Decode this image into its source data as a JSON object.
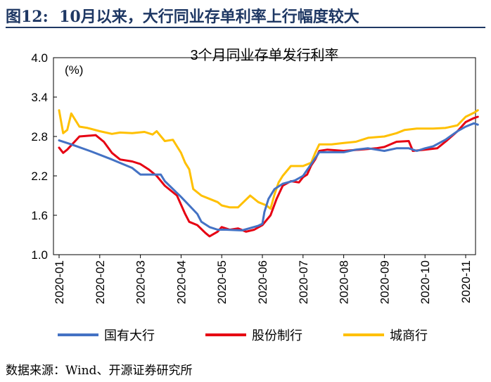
{
  "figure": {
    "label": "图12:",
    "caption": "10月以来，大行同业存单利率上行幅度较大",
    "source": "数据来源：Wind、开源证券研究所"
  },
  "chart_data": {
    "type": "line",
    "title": "3个月同业存单发行利率",
    "ylabel": "(%)",
    "xlabel": "",
    "ylim": [
      1.0,
      4.0
    ],
    "yticks": [
      "4.0",
      "3.4",
      "2.8",
      "2.2",
      "1.6",
      "1.0"
    ],
    "xticks": [
      "2020-01",
      "2020-02",
      "2020-03",
      "2020-04",
      "2020-05",
      "2020-06",
      "2020-07",
      "2020-08",
      "2020-09",
      "2020-10",
      "2020-11"
    ],
    "legend_position": "bottom",
    "series": [
      {
        "name": "国有大行",
        "color": "#4472c4",
        "points": [
          [
            0,
            2.74
          ],
          [
            0.3,
            2.68
          ],
          [
            0.8,
            2.57
          ],
          [
            1.3,
            2.45
          ],
          [
            1.8,
            2.32
          ],
          [
            2.0,
            2.22
          ],
          [
            2.5,
            2.22
          ],
          [
            2.6,
            2.12
          ],
          [
            3.0,
            1.88
          ],
          [
            3.2,
            1.75
          ],
          [
            3.4,
            1.62
          ],
          [
            3.5,
            1.5
          ],
          [
            3.7,
            1.42
          ],
          [
            3.9,
            1.38
          ],
          [
            4.1,
            1.38
          ],
          [
            4.5,
            1.37
          ],
          [
            4.9,
            1.44
          ],
          [
            5.0,
            1.47
          ],
          [
            5.05,
            1.65
          ],
          [
            5.15,
            1.85
          ],
          [
            5.3,
            2.0
          ],
          [
            5.5,
            2.08
          ],
          [
            5.8,
            2.13
          ],
          [
            6.0,
            2.2
          ],
          [
            6.2,
            2.38
          ],
          [
            6.4,
            2.56
          ],
          [
            6.6,
            2.56
          ],
          [
            7.0,
            2.56
          ],
          [
            7.3,
            2.6
          ],
          [
            7.6,
            2.62
          ],
          [
            8.0,
            2.58
          ],
          [
            8.3,
            2.62
          ],
          [
            8.6,
            2.62
          ],
          [
            8.8,
            2.58
          ],
          [
            9.0,
            2.62
          ],
          [
            9.2,
            2.65
          ],
          [
            9.5,
            2.75
          ],
          [
            9.8,
            2.88
          ],
          [
            10.0,
            2.95
          ],
          [
            10.2,
            3.0
          ],
          [
            10.3,
            2.98
          ]
        ]
      },
      {
        "name": "股份制行",
        "color": "#e60012",
        "points": [
          [
            0,
            2.63
          ],
          [
            0.1,
            2.55
          ],
          [
            0.2,
            2.6
          ],
          [
            0.5,
            2.8
          ],
          [
            0.9,
            2.82
          ],
          [
            1.1,
            2.72
          ],
          [
            1.3,
            2.55
          ],
          [
            1.5,
            2.45
          ],
          [
            1.8,
            2.42
          ],
          [
            2.0,
            2.38
          ],
          [
            2.2,
            2.3
          ],
          [
            2.4,
            2.2
          ],
          [
            2.6,
            2.05
          ],
          [
            2.9,
            1.9
          ],
          [
            3.1,
            1.62
          ],
          [
            3.2,
            1.5
          ],
          [
            3.4,
            1.45
          ],
          [
            3.6,
            1.33
          ],
          [
            3.7,
            1.28
          ],
          [
            3.9,
            1.35
          ],
          [
            4.0,
            1.42
          ],
          [
            4.2,
            1.38
          ],
          [
            4.4,
            1.4
          ],
          [
            4.6,
            1.35
          ],
          [
            4.8,
            1.38
          ],
          [
            5.0,
            1.45
          ],
          [
            5.2,
            1.6
          ],
          [
            5.35,
            1.85
          ],
          [
            5.5,
            2.05
          ],
          [
            5.7,
            2.12
          ],
          [
            5.9,
            2.1
          ],
          [
            6.0,
            2.18
          ],
          [
            6.1,
            2.22
          ],
          [
            6.2,
            2.36
          ],
          [
            6.3,
            2.45
          ],
          [
            6.4,
            2.58
          ],
          [
            6.6,
            2.6
          ],
          [
            7.0,
            2.58
          ],
          [
            7.4,
            2.6
          ],
          [
            7.8,
            2.62
          ],
          [
            8.0,
            2.64
          ],
          [
            8.3,
            2.72
          ],
          [
            8.6,
            2.73
          ],
          [
            8.7,
            2.58
          ],
          [
            9.0,
            2.6
          ],
          [
            9.3,
            2.62
          ],
          [
            9.5,
            2.72
          ],
          [
            9.8,
            2.88
          ],
          [
            10.0,
            3.02
          ],
          [
            10.2,
            3.08
          ],
          [
            10.3,
            3.1
          ]
        ]
      },
      {
        "name": "城商行",
        "color": "#ffc000",
        "points": [
          [
            0,
            3.2
          ],
          [
            0.1,
            2.85
          ],
          [
            0.2,
            2.9
          ],
          [
            0.3,
            3.15
          ],
          [
            0.5,
            2.95
          ],
          [
            0.7,
            2.93
          ],
          [
            1.0,
            2.88
          ],
          [
            1.3,
            2.84
          ],
          [
            1.5,
            2.86
          ],
          [
            1.8,
            2.85
          ],
          [
            2.1,
            2.87
          ],
          [
            2.3,
            2.83
          ],
          [
            2.4,
            2.88
          ],
          [
            2.6,
            2.73
          ],
          [
            2.8,
            2.75
          ],
          [
            2.9,
            2.65
          ],
          [
            3.0,
            2.55
          ],
          [
            3.1,
            2.4
          ],
          [
            3.2,
            2.3
          ],
          [
            3.3,
            2.0
          ],
          [
            3.5,
            1.9
          ],
          [
            3.7,
            1.85
          ],
          [
            3.9,
            1.8
          ],
          [
            4.0,
            1.75
          ],
          [
            4.2,
            1.72
          ],
          [
            4.4,
            1.72
          ],
          [
            4.7,
            1.9
          ],
          [
            4.9,
            1.8
          ],
          [
            5.1,
            1.75
          ],
          [
            5.2,
            1.7
          ],
          [
            5.3,
            1.92
          ],
          [
            5.4,
            2.1
          ],
          [
            5.5,
            2.2
          ],
          [
            5.7,
            2.35
          ],
          [
            6.0,
            2.35
          ],
          [
            6.2,
            2.4
          ],
          [
            6.3,
            2.55
          ],
          [
            6.4,
            2.68
          ],
          [
            6.7,
            2.68
          ],
          [
            7.0,
            2.7
          ],
          [
            7.3,
            2.72
          ],
          [
            7.6,
            2.78
          ],
          [
            8.0,
            2.8
          ],
          [
            8.3,
            2.85
          ],
          [
            8.5,
            2.9
          ],
          [
            8.8,
            2.92
          ],
          [
            9.0,
            2.92
          ],
          [
            9.2,
            2.92
          ],
          [
            9.5,
            2.93
          ],
          [
            9.8,
            2.97
          ],
          [
            10.0,
            3.1
          ],
          [
            10.2,
            3.16
          ],
          [
            10.3,
            3.2
          ]
        ]
      }
    ]
  }
}
